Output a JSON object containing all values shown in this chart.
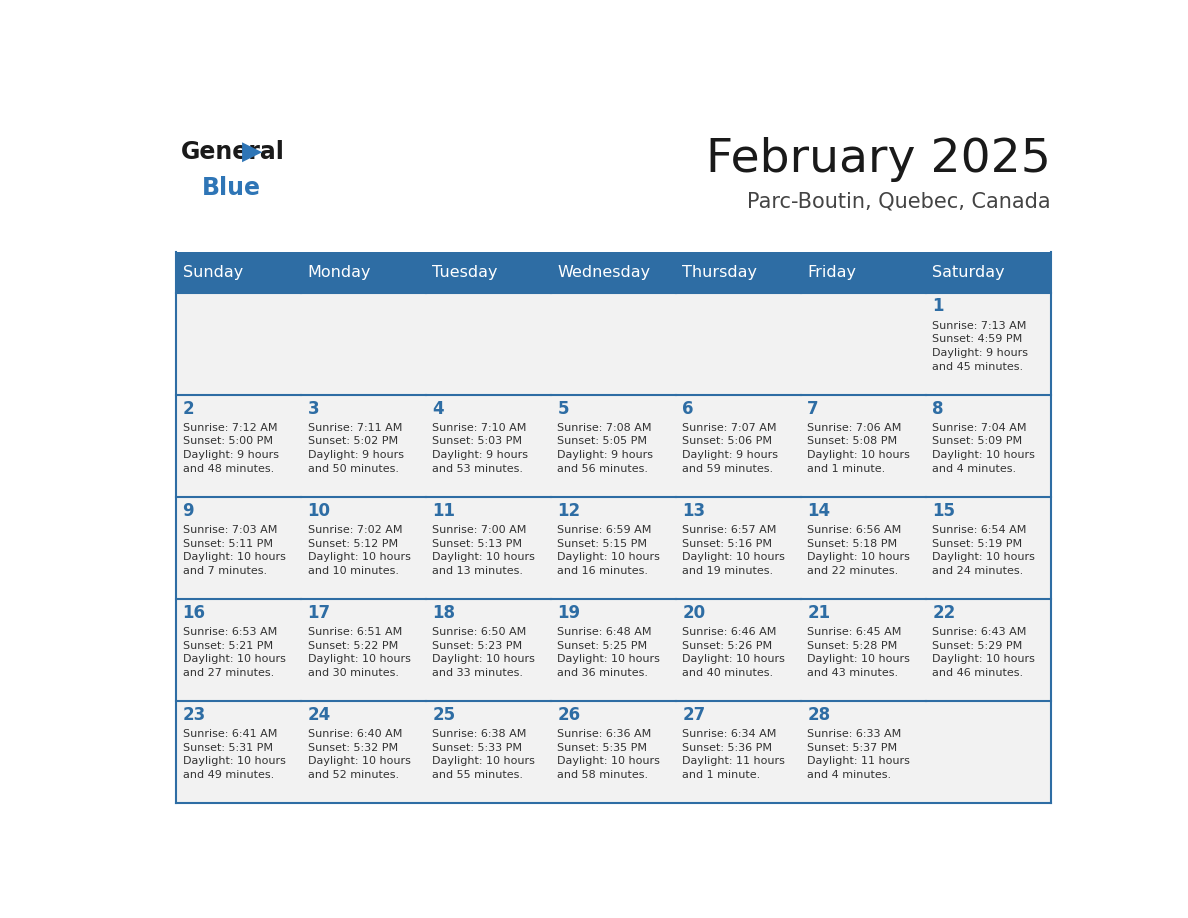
{
  "title": "February 2025",
  "subtitle": "Parc-Boutin, Quebec, Canada",
  "days_of_week": [
    "Sunday",
    "Monday",
    "Tuesday",
    "Wednesday",
    "Thursday",
    "Friday",
    "Saturday"
  ],
  "header_bg": "#2E6DA4",
  "header_text": "#FFFFFF",
  "cell_bg_light": "#F2F2F2",
  "day_num_color": "#2E6DA4",
  "info_text_color": "#333333",
  "border_color": "#2E6DA4",
  "logo_general_color": "#1a1a1a",
  "logo_blue_color": "#2E75B6",
  "weeks": [
    [
      {
        "day": null,
        "info": ""
      },
      {
        "day": null,
        "info": ""
      },
      {
        "day": null,
        "info": ""
      },
      {
        "day": null,
        "info": ""
      },
      {
        "day": null,
        "info": ""
      },
      {
        "day": null,
        "info": ""
      },
      {
        "day": 1,
        "info": "Sunrise: 7:13 AM\nSunset: 4:59 PM\nDaylight: 9 hours\nand 45 minutes."
      }
    ],
    [
      {
        "day": 2,
        "info": "Sunrise: 7:12 AM\nSunset: 5:00 PM\nDaylight: 9 hours\nand 48 minutes."
      },
      {
        "day": 3,
        "info": "Sunrise: 7:11 AM\nSunset: 5:02 PM\nDaylight: 9 hours\nand 50 minutes."
      },
      {
        "day": 4,
        "info": "Sunrise: 7:10 AM\nSunset: 5:03 PM\nDaylight: 9 hours\nand 53 minutes."
      },
      {
        "day": 5,
        "info": "Sunrise: 7:08 AM\nSunset: 5:05 PM\nDaylight: 9 hours\nand 56 minutes."
      },
      {
        "day": 6,
        "info": "Sunrise: 7:07 AM\nSunset: 5:06 PM\nDaylight: 9 hours\nand 59 minutes."
      },
      {
        "day": 7,
        "info": "Sunrise: 7:06 AM\nSunset: 5:08 PM\nDaylight: 10 hours\nand 1 minute."
      },
      {
        "day": 8,
        "info": "Sunrise: 7:04 AM\nSunset: 5:09 PM\nDaylight: 10 hours\nand 4 minutes."
      }
    ],
    [
      {
        "day": 9,
        "info": "Sunrise: 7:03 AM\nSunset: 5:11 PM\nDaylight: 10 hours\nand 7 minutes."
      },
      {
        "day": 10,
        "info": "Sunrise: 7:02 AM\nSunset: 5:12 PM\nDaylight: 10 hours\nand 10 minutes."
      },
      {
        "day": 11,
        "info": "Sunrise: 7:00 AM\nSunset: 5:13 PM\nDaylight: 10 hours\nand 13 minutes."
      },
      {
        "day": 12,
        "info": "Sunrise: 6:59 AM\nSunset: 5:15 PM\nDaylight: 10 hours\nand 16 minutes."
      },
      {
        "day": 13,
        "info": "Sunrise: 6:57 AM\nSunset: 5:16 PM\nDaylight: 10 hours\nand 19 minutes."
      },
      {
        "day": 14,
        "info": "Sunrise: 6:56 AM\nSunset: 5:18 PM\nDaylight: 10 hours\nand 22 minutes."
      },
      {
        "day": 15,
        "info": "Sunrise: 6:54 AM\nSunset: 5:19 PM\nDaylight: 10 hours\nand 24 minutes."
      }
    ],
    [
      {
        "day": 16,
        "info": "Sunrise: 6:53 AM\nSunset: 5:21 PM\nDaylight: 10 hours\nand 27 minutes."
      },
      {
        "day": 17,
        "info": "Sunrise: 6:51 AM\nSunset: 5:22 PM\nDaylight: 10 hours\nand 30 minutes."
      },
      {
        "day": 18,
        "info": "Sunrise: 6:50 AM\nSunset: 5:23 PM\nDaylight: 10 hours\nand 33 minutes."
      },
      {
        "day": 19,
        "info": "Sunrise: 6:48 AM\nSunset: 5:25 PM\nDaylight: 10 hours\nand 36 minutes."
      },
      {
        "day": 20,
        "info": "Sunrise: 6:46 AM\nSunset: 5:26 PM\nDaylight: 10 hours\nand 40 minutes."
      },
      {
        "day": 21,
        "info": "Sunrise: 6:45 AM\nSunset: 5:28 PM\nDaylight: 10 hours\nand 43 minutes."
      },
      {
        "day": 22,
        "info": "Sunrise: 6:43 AM\nSunset: 5:29 PM\nDaylight: 10 hours\nand 46 minutes."
      }
    ],
    [
      {
        "day": 23,
        "info": "Sunrise: 6:41 AM\nSunset: 5:31 PM\nDaylight: 10 hours\nand 49 minutes."
      },
      {
        "day": 24,
        "info": "Sunrise: 6:40 AM\nSunset: 5:32 PM\nDaylight: 10 hours\nand 52 minutes."
      },
      {
        "day": 25,
        "info": "Sunrise: 6:38 AM\nSunset: 5:33 PM\nDaylight: 10 hours\nand 55 minutes."
      },
      {
        "day": 26,
        "info": "Sunrise: 6:36 AM\nSunset: 5:35 PM\nDaylight: 10 hours\nand 58 minutes."
      },
      {
        "day": 27,
        "info": "Sunrise: 6:34 AM\nSunset: 5:36 PM\nDaylight: 11 hours\nand 1 minute."
      },
      {
        "day": 28,
        "info": "Sunrise: 6:33 AM\nSunset: 5:37 PM\nDaylight: 11 hours\nand 4 minutes."
      },
      {
        "day": null,
        "info": ""
      }
    ]
  ]
}
